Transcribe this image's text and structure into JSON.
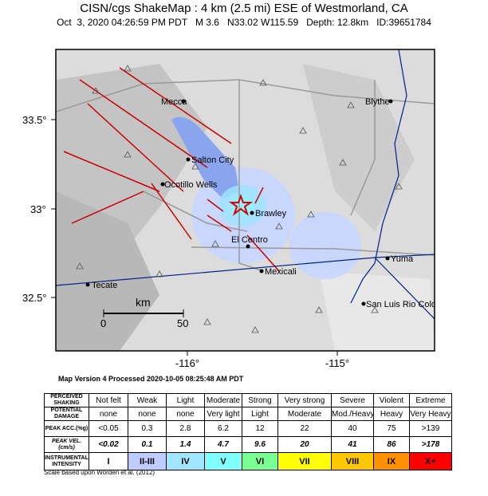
{
  "header": {
    "title": "CISN/cgs ShakeMap : 4 km (2.5 mi) ESE of Westmorland, CA",
    "subtitle": "Oct  3, 2020 04:26:59 PM PDT   M 3.6   N33.02 W115.59   Depth: 12.8km   ID:39651784"
  },
  "map": {
    "lat_labels": [
      "33.5°",
      "33°",
      "32.5°"
    ],
    "lon_labels": [
      "-116°",
      "-115°"
    ],
    "cities": [
      "Mecca",
      "Blythe",
      "Salton City",
      "Ocotillo Wells",
      "Brawley",
      "El Centro",
      "Mexicali",
      "Yuma",
      "Tecate",
      "San Luis Rio Colo"
    ],
    "scale": {
      "unit": "km",
      "start": "0",
      "end": "50"
    }
  },
  "version": "Map Version 4 Processed 2020-10-05 08:25:48 AM PDT",
  "table": {
    "rows": [
      [
        "PERCEIVED SHAKING",
        "Not felt",
        "Weak",
        "Light",
        "Moderate",
        "Strong",
        "Very strong",
        "Severe",
        "Violent",
        "Extreme"
      ],
      [
        "POTENTIAL DAMAGE",
        "none",
        "none",
        "none",
        "Very light",
        "Light",
        "Moderate",
        "Mod./Heavy",
        "Heavy",
        "Very Heavy"
      ],
      [
        "PEAK ACC.(%g)",
        "<0.05",
        "0.3",
        "2.8",
        "6.2",
        "12",
        "22",
        "40",
        "75",
        ">139"
      ],
      [
        "PEAK VEL.(cm/s)",
        "<0.02",
        "0.1",
        "1.4",
        "4.7",
        "9.6",
        "20",
        "41",
        "86",
        ">178"
      ],
      [
        "INSTRUMENTAL INTENSITY",
        "I",
        "II-III",
        "IV",
        "V",
        "VI",
        "VII",
        "VIII",
        "IX",
        "X+"
      ]
    ]
  },
  "footnote": "Scale based upon Worden et al. (2012)"
}
